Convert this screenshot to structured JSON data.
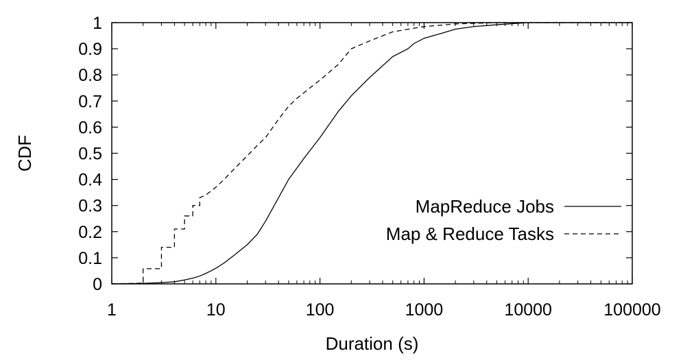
{
  "chart_data": {
    "type": "line",
    "xlabel": "Duration (s)",
    "ylabel": "CDF",
    "x_scale": "log",
    "xlim": [
      1,
      100000
    ],
    "ylim": [
      0,
      1
    ],
    "x_ticks": [
      1,
      10,
      100,
      1000,
      10000,
      100000
    ],
    "x_tick_labels": [
      "1",
      "10",
      "100",
      "1000",
      "10000",
      "100000"
    ],
    "y_ticks": [
      0,
      0.1,
      0.2,
      0.3,
      0.4,
      0.5,
      0.6,
      0.7,
      0.8,
      0.9,
      1
    ],
    "y_tick_labels": [
      "0",
      "0.1",
      "0.2",
      "0.3",
      "0.4",
      "0.5",
      "0.6",
      "0.7",
      "0.8",
      "0.9",
      "1"
    ],
    "grid": false,
    "legend_position": "right",
    "series": [
      {
        "name": "MapReduce Jobs",
        "line_style": "solid",
        "color": "#000000",
        "x": [
          1,
          2,
          3,
          4,
          5,
          6,
          7,
          8,
          9,
          10,
          12,
          15,
          20,
          25,
          30,
          40,
          50,
          70,
          100,
          150,
          200,
          300,
          500,
          700,
          800,
          1000,
          1500,
          2000,
          3000,
          5000,
          10000,
          100000
        ],
        "y": [
          0,
          0.002,
          0.005,
          0.008,
          0.015,
          0.022,
          0.03,
          0.04,
          0.05,
          0.06,
          0.08,
          0.11,
          0.15,
          0.19,
          0.24,
          0.33,
          0.4,
          0.48,
          0.56,
          0.66,
          0.72,
          0.79,
          0.87,
          0.9,
          0.92,
          0.94,
          0.96,
          0.975,
          0.985,
          0.992,
          1.0,
          1.0
        ]
      },
      {
        "name": "Map & Reduce Tasks",
        "line_style": "dashed",
        "color": "#000000",
        "x": [
          1,
          2,
          2,
          3,
          3,
          4,
          4,
          5,
          5,
          6,
          6,
          7,
          7,
          8,
          10,
          12,
          15,
          20,
          25,
          30,
          40,
          50,
          60,
          80,
          100,
          150,
          200,
          300,
          500,
          1000,
          2000,
          5000,
          10000,
          100000
        ],
        "y": [
          0,
          0.003,
          0.058,
          0.058,
          0.14,
          0.14,
          0.21,
          0.21,
          0.26,
          0.26,
          0.3,
          0.3,
          0.33,
          0.34,
          0.37,
          0.4,
          0.44,
          0.49,
          0.53,
          0.56,
          0.63,
          0.68,
          0.71,
          0.75,
          0.78,
          0.84,
          0.9,
          0.93,
          0.965,
          0.985,
          0.995,
          1.0,
          1.0,
          1.0
        ]
      }
    ]
  }
}
